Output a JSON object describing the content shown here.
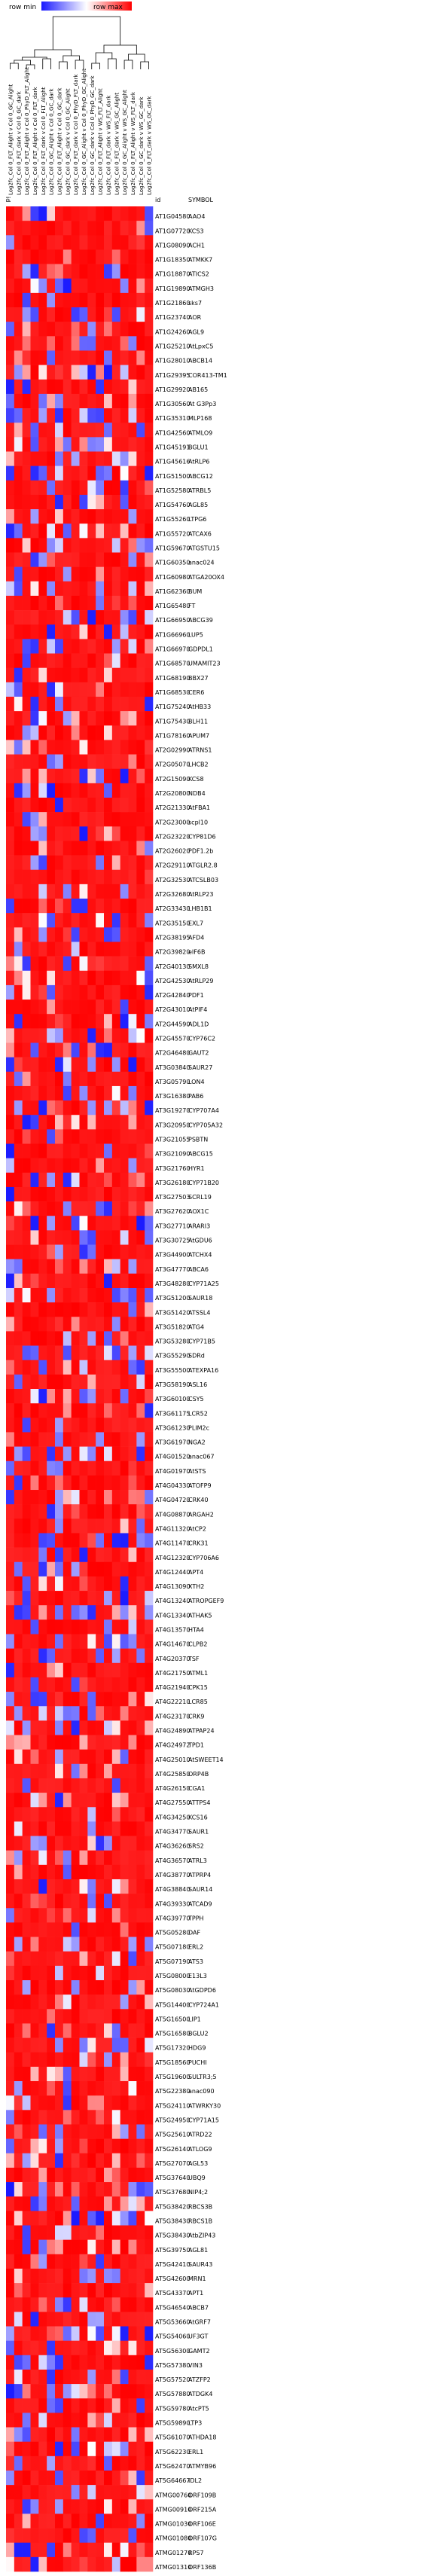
{
  "legend": {
    "min_label": "row min",
    "max_label": "row max",
    "colors": [
      "#1a1aff",
      "#ffffff",
      "#ff0000"
    ]
  },
  "header": {
    "index_label": "id",
    "id_label": "id",
    "symbol_label": "SYMBOL"
  },
  "chart_data": {
    "type": "heatmap",
    "columns": [
      "Log2fc_Col 0_FLT_Alight v Col 0_GC_Alight",
      "Log2fc_Col 0_FLT_dark v Col 0_GC_dark",
      "Log2fc_Col 0_FLT_Alight v Col 0_PhyD_FLT_Alight",
      "Log2fc_Col 0_FLT_Alight v Col 0_FLT_dark",
      "Log2fc_Col 0_FLT_dark v Col 0_FLT_Alight",
      "Log2fc_Col 0_GC_Alight v Col 0_GC_dark",
      "Log2fc_Col 0_FLT_Alight v Col 0_GC_dark",
      "Log2fc_Col 0_GC_dark v Col 0_GC_Alight",
      "Log2fc_Col 0_FLT_dark v Col 0_PhyD_FLT_dark",
      "Log2fc_Col 0_GC_Alight v Col 0_PhyD_GC_Alight",
      "Log2fc_Col 0_GC_dark v Col 0_PhyD_GC_dark",
      "Log2fc_Col 0_FLT_Alight v WS_FLT_Alight",
      "Log2fc_Col 0_FLT_dark v WS_FLT_dark",
      "Log2fc_Col 0_FLT_dark v WS_GC_Alight",
      "Log2fc_Col 0_GC_Alight v WS_GC_Alight",
      "Log2fc_Col 0_FLT_Alight v WS_FLT_dark",
      "Log2fc_Col 0_GC_dark v WS_GC_dark",
      "Log2fc_Col 0_FLT_dark v WS_GC_dark"
    ],
    "rows": [
      {
        "id": "AT1G04580",
        "symbol": "AAO4"
      },
      {
        "id": "AT1G07720",
        "symbol": "KCS3"
      },
      {
        "id": "AT1G08090",
        "symbol": "ACH1"
      },
      {
        "id": "AT1G18350",
        "symbol": "ATMKK7"
      },
      {
        "id": "AT1G18870",
        "symbol": "ATICS2"
      },
      {
        "id": "AT1G19890",
        "symbol": "ATMGH3"
      },
      {
        "id": "AT1G21860",
        "symbol": "sks7"
      },
      {
        "id": "AT1G23740",
        "symbol": "AOR"
      },
      {
        "id": "AT1G24260",
        "symbol": "AGL9"
      },
      {
        "id": "AT1G25210",
        "symbol": "AtLpxC5"
      },
      {
        "id": "AT1G28010",
        "symbol": "ABCB14"
      },
      {
        "id": "AT1G29395",
        "symbol": "COR413-TM1"
      },
      {
        "id": "AT1G29920",
        "symbol": "AB165"
      },
      {
        "id": "AT1G30560",
        "symbol": "At G3Pp3"
      },
      {
        "id": "AT1G35310",
        "symbol": "MLP168"
      },
      {
        "id": "AT1G42560",
        "symbol": "ATMLO9"
      },
      {
        "id": "AT1G45191",
        "symbol": "BGLU1"
      },
      {
        "id": "AT1G45616",
        "symbol": "AtRLP6"
      },
      {
        "id": "AT1G51500",
        "symbol": "ABCG12"
      },
      {
        "id": "AT1G52580",
        "symbol": "ATRBL5"
      },
      {
        "id": "AT1G54760",
        "symbol": "AGL85"
      },
      {
        "id": "AT1G55260",
        "symbol": "LTPG6"
      },
      {
        "id": "AT1G55720",
        "symbol": "ATCAX6"
      },
      {
        "id": "AT1G59670",
        "symbol": "ATGSTU15"
      },
      {
        "id": "AT1G60350",
        "symbol": "anac024"
      },
      {
        "id": "AT1G60980",
        "symbol": "ATGA20OX4"
      },
      {
        "id": "AT1G62360",
        "symbol": "BUM"
      },
      {
        "id": "AT1G65480",
        "symbol": "FT"
      },
      {
        "id": "AT1G66950",
        "symbol": "ABCG39"
      },
      {
        "id": "AT1G66960",
        "symbol": "LUP5"
      },
      {
        "id": "AT1G66970",
        "symbol": "GDPDL1"
      },
      {
        "id": "AT1G68570",
        "symbol": "UMAMIT23"
      },
      {
        "id": "AT1G68190",
        "symbol": "BBX27"
      },
      {
        "id": "AT1G68530",
        "symbol": "CER6"
      },
      {
        "id": "AT1G75240",
        "symbol": "AtHB33"
      },
      {
        "id": "AT1G75430",
        "symbol": "BLH11"
      },
      {
        "id": "AT1G78160",
        "symbol": "APUM7"
      },
      {
        "id": "AT2G02990",
        "symbol": "ATRNS1"
      },
      {
        "id": "AT2G05070",
        "symbol": "LHCB2"
      },
      {
        "id": "AT2G15090",
        "symbol": "KCS8"
      },
      {
        "id": "AT2G20800",
        "symbol": "NDB4"
      },
      {
        "id": "AT2G21330",
        "symbol": "AtFBA1"
      },
      {
        "id": "AT2G23000",
        "symbol": "scpl10"
      },
      {
        "id": "AT2G23220",
        "symbol": "CYP81D6"
      },
      {
        "id": "AT2G26020",
        "symbol": "PDF1.2b"
      },
      {
        "id": "AT2G29110",
        "symbol": "ATGLR2.8"
      },
      {
        "id": "AT2G32530",
        "symbol": "ATCSLB03"
      },
      {
        "id": "AT2G32680",
        "symbol": "AtRLP23"
      },
      {
        "id": "AT2G33430",
        "symbol": "LHB1B1"
      },
      {
        "id": "AT2G35150",
        "symbol": "EXL7"
      },
      {
        "id": "AT2G38195",
        "symbol": "AFD4"
      },
      {
        "id": "AT2G39820",
        "symbol": "eIF6B"
      },
      {
        "id": "AT2G40130",
        "symbol": "SMXL8"
      },
      {
        "id": "AT2G42530",
        "symbol": "AtRLP29"
      },
      {
        "id": "AT2G42840",
        "symbol": "PDF1"
      },
      {
        "id": "AT2G43010",
        "symbol": "AtPIF4"
      },
      {
        "id": "AT2G44590",
        "symbol": "ADL1D"
      },
      {
        "id": "AT2G45570",
        "symbol": "CYP76C2"
      },
      {
        "id": "AT2G46480",
        "symbol": "GAUT2"
      },
      {
        "id": "AT3G03840",
        "symbol": "SAUR27"
      },
      {
        "id": "AT3G05790",
        "symbol": "LON4"
      },
      {
        "id": "AT3G16380",
        "symbol": "PAB6"
      },
      {
        "id": "AT3G19270",
        "symbol": "CYP707A4"
      },
      {
        "id": "AT3G20950",
        "symbol": "CYP705A32"
      },
      {
        "id": "AT3G21055",
        "symbol": "PSBTN"
      },
      {
        "id": "AT3G21090",
        "symbol": "ABCG15"
      },
      {
        "id": "AT3G21760",
        "symbol": "HYR1"
      },
      {
        "id": "AT3G26180",
        "symbol": "CYP71B20"
      },
      {
        "id": "AT3G27503",
        "symbol": "SCRL19"
      },
      {
        "id": "AT3G27620",
        "symbol": "AOX1C"
      },
      {
        "id": "AT3G27710",
        "symbol": "ARARI3"
      },
      {
        "id": "AT3G30725",
        "symbol": "AtGDU6"
      },
      {
        "id": "AT3G44900",
        "symbol": "ATCHX4"
      },
      {
        "id": "AT3G47770",
        "symbol": "ABCA6"
      },
      {
        "id": "AT3G48280",
        "symbol": "CYP71A25"
      },
      {
        "id": "AT3G51200",
        "symbol": "SAUR18"
      },
      {
        "id": "AT3G51420",
        "symbol": "ATSSL4"
      },
      {
        "id": "AT3G51820",
        "symbol": "ATG4"
      },
      {
        "id": "AT3G53280",
        "symbol": "CYP71B5"
      },
      {
        "id": "AT3G55290",
        "symbol": "SDRd"
      },
      {
        "id": "AT3G55500",
        "symbol": "ATEXPA16"
      },
      {
        "id": "AT3G58190",
        "symbol": "ASL16"
      },
      {
        "id": "AT3G60100",
        "symbol": "CSY5"
      },
      {
        "id": "AT3G61175",
        "symbol": "LCR52"
      },
      {
        "id": "AT3G61230",
        "symbol": "PLIM2c"
      },
      {
        "id": "AT3G61970",
        "symbol": "NGA2"
      },
      {
        "id": "AT4G01520",
        "symbol": "anac067"
      },
      {
        "id": "AT4G01970",
        "symbol": "AtSTS"
      },
      {
        "id": "AT4G04330",
        "symbol": "ATOFP9"
      },
      {
        "id": "AT4G04720",
        "symbol": "CRK40"
      },
      {
        "id": "AT4G08870",
        "symbol": "ARGAH2"
      },
      {
        "id": "AT4G11320",
        "symbol": "AtCP2"
      },
      {
        "id": "AT4G11470",
        "symbol": "CRK31"
      },
      {
        "id": "AT4G12320",
        "symbol": "CYP706A6"
      },
      {
        "id": "AT4G12440",
        "symbol": "APT4"
      },
      {
        "id": "AT4G13090",
        "symbol": "XTH2"
      },
      {
        "id": "AT4G13240",
        "symbol": "ATROPGEF9"
      },
      {
        "id": "AT4G13340",
        "symbol": "ATHAK5"
      },
      {
        "id": "AT4G13570",
        "symbol": "HTA4"
      },
      {
        "id": "AT4G14670",
        "symbol": "CLPB2"
      },
      {
        "id": "AT4G20370",
        "symbol": "TSF"
      },
      {
        "id": "AT4G21750",
        "symbol": "ATML1"
      },
      {
        "id": "AT4G21940",
        "symbol": "CPK15"
      },
      {
        "id": "AT4G22210",
        "symbol": "LCR85"
      },
      {
        "id": "AT4G23170",
        "symbol": "CRK9"
      },
      {
        "id": "AT4G24890",
        "symbol": "ATPAP24"
      },
      {
        "id": "AT4G24972",
        "symbol": "TPD1"
      },
      {
        "id": "AT4G25010",
        "symbol": "AtSWEET14"
      },
      {
        "id": "AT4G25850",
        "symbol": "ORP4B"
      },
      {
        "id": "AT4G26150",
        "symbol": "CGA1"
      },
      {
        "id": "AT4G27550",
        "symbol": "ATTPS4"
      },
      {
        "id": "AT4G34250",
        "symbol": "KCS16"
      },
      {
        "id": "AT4G34770",
        "symbol": "SAUR1"
      },
      {
        "id": "AT4G36260",
        "symbol": "SRS2"
      },
      {
        "id": "AT4G36570",
        "symbol": "ATRL3"
      },
      {
        "id": "AT4G38770",
        "symbol": "ATPRP4"
      },
      {
        "id": "AT4G38840",
        "symbol": "SAUR14"
      },
      {
        "id": "AT4G39330",
        "symbol": "ATCAD9"
      },
      {
        "id": "AT4G39770",
        "symbol": "TPPH"
      },
      {
        "id": "AT5G05280",
        "symbol": "DAF"
      },
      {
        "id": "AT5G07180",
        "symbol": "ERL2"
      },
      {
        "id": "AT5G07190",
        "symbol": "ATS3"
      },
      {
        "id": "AT5G08000",
        "symbol": "E13L3"
      },
      {
        "id": "AT5G08030",
        "symbol": "AtGDPD6"
      },
      {
        "id": "AT5G14400",
        "symbol": "CYP724A1"
      },
      {
        "id": "AT5G16500",
        "symbol": "LIP1"
      },
      {
        "id": "AT5G16580",
        "symbol": "BGLU2"
      },
      {
        "id": "AT5G17320",
        "symbol": "HDG9"
      },
      {
        "id": "AT5G18560",
        "symbol": "PUCHI"
      },
      {
        "id": "AT5G19600",
        "symbol": "SULTR3;5"
      },
      {
        "id": "AT5G22380",
        "symbol": "anac090"
      },
      {
        "id": "AT5G24110",
        "symbol": "ATWRKY30"
      },
      {
        "id": "AT5G24950",
        "symbol": "CYP71A15"
      },
      {
        "id": "AT5G25610",
        "symbol": "ATRD22"
      },
      {
        "id": "AT5G26140",
        "symbol": "ATLOG9"
      },
      {
        "id": "AT5G27070",
        "symbol": "AGL53"
      },
      {
        "id": "AT5G37640",
        "symbol": "UBQ9"
      },
      {
        "id": "AT5G37680",
        "symbol": "NIP4;2"
      },
      {
        "id": "AT5G38420",
        "symbol": "RBCS3B"
      },
      {
        "id": "AT5G38430",
        "symbol": "RBCS1B"
      },
      {
        "id": "AT5G38430",
        "symbol": "AtbZIP43"
      },
      {
        "id": "AT5G39750",
        "symbol": "AGL81"
      },
      {
        "id": "AT5G42410",
        "symbol": "SAUR43"
      },
      {
        "id": "AT5G42600",
        "symbol": "MRN1"
      },
      {
        "id": "AT5G43370",
        "symbol": "APT1"
      },
      {
        "id": "AT5G46540",
        "symbol": "ABCB7"
      },
      {
        "id": "AT5G53660",
        "symbol": "AtGRF7"
      },
      {
        "id": "AT5G54060",
        "symbol": "UF3GT"
      },
      {
        "id": "AT5G56300",
        "symbol": "GAMT2"
      },
      {
        "id": "AT5G57380",
        "symbol": "VIN3"
      },
      {
        "id": "AT5G57520",
        "symbol": "ATZFP2"
      },
      {
        "id": "AT5G57880",
        "symbol": "ATDGK4"
      },
      {
        "id": "AT5G59780",
        "symbol": "AtcPT5"
      },
      {
        "id": "AT5G59890",
        "symbol": "LTP3"
      },
      {
        "id": "AT5G61070",
        "symbol": "ATHDA18"
      },
      {
        "id": "AT5G62230",
        "symbol": "ERL1"
      },
      {
        "id": "AT5G62470",
        "symbol": "ATMYB96"
      },
      {
        "id": "AT5G64667",
        "symbol": "IDL2"
      },
      {
        "id": "ATMG00760",
        "symbol": "ORF109B"
      },
      {
        "id": "ATMG00910",
        "symbol": "ORF215A"
      },
      {
        "id": "ATMG01030",
        "symbol": "ORF106E"
      },
      {
        "id": "ATMG01080",
        "symbol": "ORF107G"
      },
      {
        "id": "ATMG01270",
        "symbol": "RPS7"
      },
      {
        "id": "ATMG01310",
        "symbol": "ORF136B"
      }
    ]
  }
}
